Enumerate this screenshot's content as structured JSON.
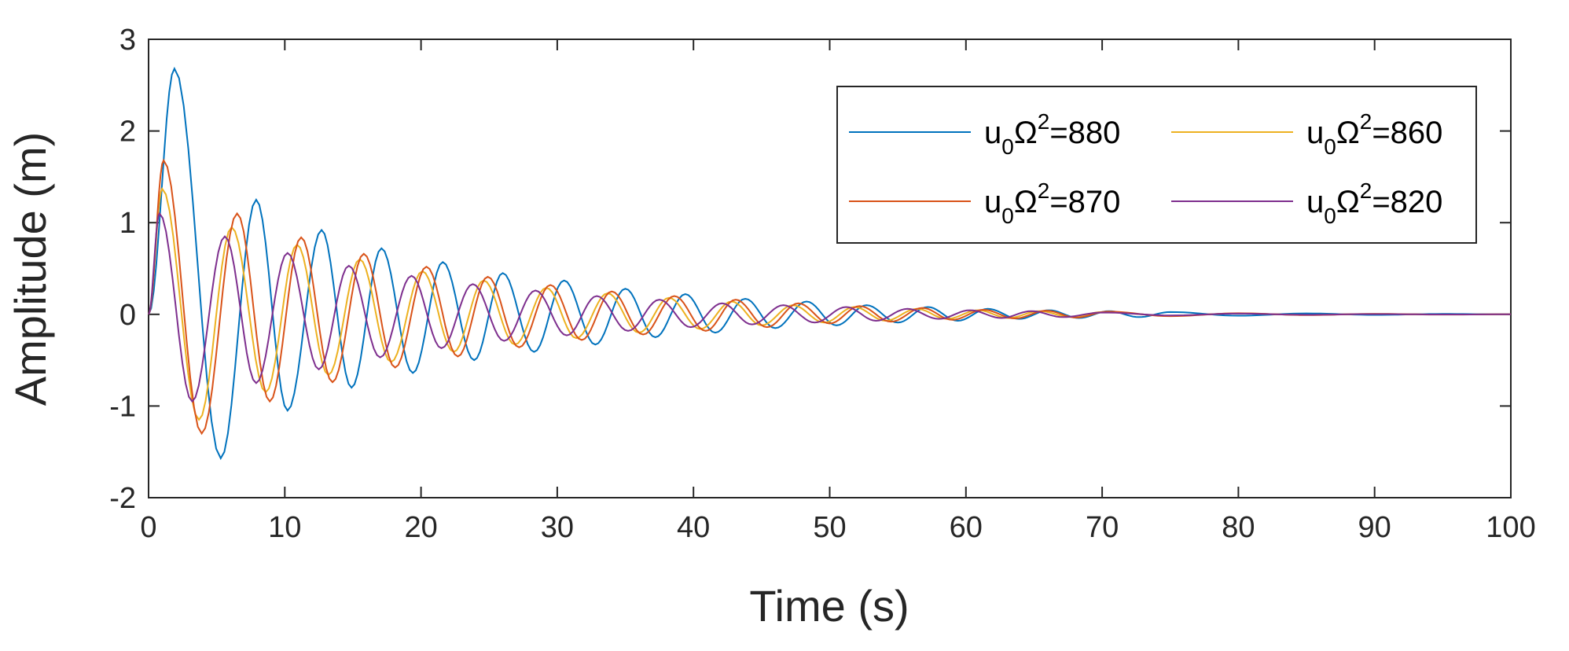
{
  "chart_data": {
    "type": "line",
    "xlabel": "Time (s)",
    "ylabel": "Amplitude (m)",
    "xlim": [
      0,
      100
    ],
    "ylim": [
      -2,
      3
    ],
    "x_ticks": [
      "0",
      "10",
      "20",
      "30",
      "40",
      "50",
      "60",
      "70",
      "80",
      "90",
      "100"
    ],
    "y_ticks": [
      "-2",
      "-1",
      "0",
      "1",
      "2",
      "3"
    ],
    "grid": false,
    "legend_position": "top-right",
    "legend_columns": 2,
    "series": [
      {
        "name": "u0Ω2=880",
        "label_parts": [
          "u",
          "0",
          "Ω",
          "2",
          "=880"
        ],
        "color": "#0072BD",
        "x": [
          0,
          1.9,
          5.3,
          7.9,
          10.2,
          12.7,
          14.9,
          17.1,
          19.4,
          21.6,
          23.9,
          26.0,
          28.3,
          30.5,
          32.8,
          35.0,
          37.2,
          39.4,
          41.6,
          43.8,
          46.0,
          48.3,
          50.5,
          52.7,
          55.0,
          57.2,
          59.4,
          61.6,
          63.9,
          66.1,
          68.3,
          70.5,
          72.7,
          75.0,
          80.0,
          85.0,
          90.0,
          95.0,
          100.0
        ],
        "y": [
          0,
          2.68,
          -1.57,
          1.25,
          -1.05,
          0.92,
          -0.8,
          0.72,
          -0.64,
          0.57,
          -0.5,
          0.45,
          -0.41,
          0.37,
          -0.33,
          0.28,
          -0.25,
          0.22,
          -0.2,
          0.17,
          -0.15,
          0.14,
          -0.12,
          0.1,
          -0.09,
          0.08,
          -0.07,
          0.06,
          -0.05,
          0.045,
          -0.04,
          0.035,
          -0.03,
          0.025,
          -0.015,
          0.01,
          -0.006,
          0.004,
          0
        ]
      },
      {
        "name": "u0Ω2=860",
        "label_parts": [
          "u",
          "0",
          "Ω",
          "2",
          "=860"
        ],
        "color": "#EDB120",
        "x": [
          0,
          1.0,
          3.7,
          6.1,
          8.6,
          10.9,
          13.2,
          15.5,
          17.8,
          20.1,
          22.4,
          24.6,
          26.9,
          29.2,
          31.4,
          33.7,
          36.0,
          38.2,
          40.5,
          42.8,
          45.0,
          47.3,
          49.6,
          51.8,
          54.1,
          56.4,
          58.6,
          60.9,
          63.1,
          65.4,
          67.7,
          70.0,
          75.0,
          80.0,
          85.0,
          90.0,
          95.0,
          100.0
        ],
        "y": [
          0,
          1.37,
          -1.15,
          0.95,
          -0.85,
          0.76,
          -0.66,
          0.6,
          -0.52,
          0.47,
          -0.41,
          0.37,
          -0.33,
          0.29,
          -0.26,
          0.23,
          -0.2,
          0.18,
          -0.16,
          0.14,
          -0.12,
          0.1,
          -0.09,
          0.08,
          -0.07,
          0.06,
          -0.05,
          0.045,
          -0.04,
          0.035,
          -0.03,
          0.025,
          -0.015,
          0.01,
          -0.006,
          0.004,
          -0.002,
          0
        ]
      },
      {
        "name": "u0Ω2=870",
        "label_parts": [
          "u",
          "0",
          "Ω",
          "2",
          "=870"
        ],
        "color": "#D95319",
        "x": [
          0,
          1.1,
          3.9,
          6.5,
          8.9,
          11.2,
          13.5,
          15.8,
          18.1,
          20.4,
          22.7,
          24.9,
          27.2,
          29.5,
          31.8,
          34.0,
          36.3,
          38.6,
          40.9,
          43.1,
          45.4,
          47.7,
          50.0,
          52.2,
          54.5,
          56.8,
          59.0,
          61.3,
          63.6,
          65.9,
          68.1,
          70.4,
          75.0,
          80.0,
          85.0,
          90.0,
          95.0,
          100.0
        ],
        "y": [
          0,
          1.68,
          -1.3,
          1.1,
          -0.95,
          0.84,
          -0.74,
          0.66,
          -0.58,
          0.52,
          -0.46,
          0.41,
          -0.36,
          0.32,
          -0.28,
          0.25,
          -0.22,
          0.2,
          -0.18,
          0.16,
          -0.14,
          0.12,
          -0.1,
          0.09,
          -0.08,
          0.07,
          -0.06,
          0.05,
          -0.045,
          0.04,
          -0.035,
          0.03,
          -0.02,
          0.012,
          -0.008,
          0.005,
          -0.003,
          0
        ]
      },
      {
        "name": "u0Ω2=820",
        "label_parts": [
          "u",
          "0",
          "Ω",
          "2",
          "=820"
        ],
        "color": "#7E2F8E",
        "x": [
          0,
          0.8,
          3.2,
          5.6,
          7.9,
          10.2,
          12.5,
          14.7,
          17.0,
          19.3,
          21.5,
          23.8,
          26.1,
          28.4,
          30.7,
          32.9,
          35.2,
          37.5,
          39.8,
          42.1,
          44.3,
          46.6,
          48.9,
          51.2,
          53.4,
          55.7,
          58.0,
          60.3,
          62.6,
          64.8,
          67.1,
          70.0,
          75.0,
          80.0,
          85.0,
          90.0,
          95.0,
          100.0
        ],
        "y": [
          0,
          1.1,
          -0.95,
          0.85,
          -0.75,
          0.67,
          -0.6,
          0.53,
          -0.47,
          0.42,
          -0.37,
          0.33,
          -0.29,
          0.26,
          -0.23,
          0.2,
          -0.18,
          0.16,
          -0.14,
          0.12,
          -0.11,
          0.1,
          -0.09,
          0.08,
          -0.07,
          0.06,
          -0.05,
          0.045,
          -0.04,
          0.035,
          -0.03,
          0.02,
          -0.012,
          0.008,
          -0.005,
          0.003,
          -0.002,
          0
        ]
      }
    ]
  }
}
